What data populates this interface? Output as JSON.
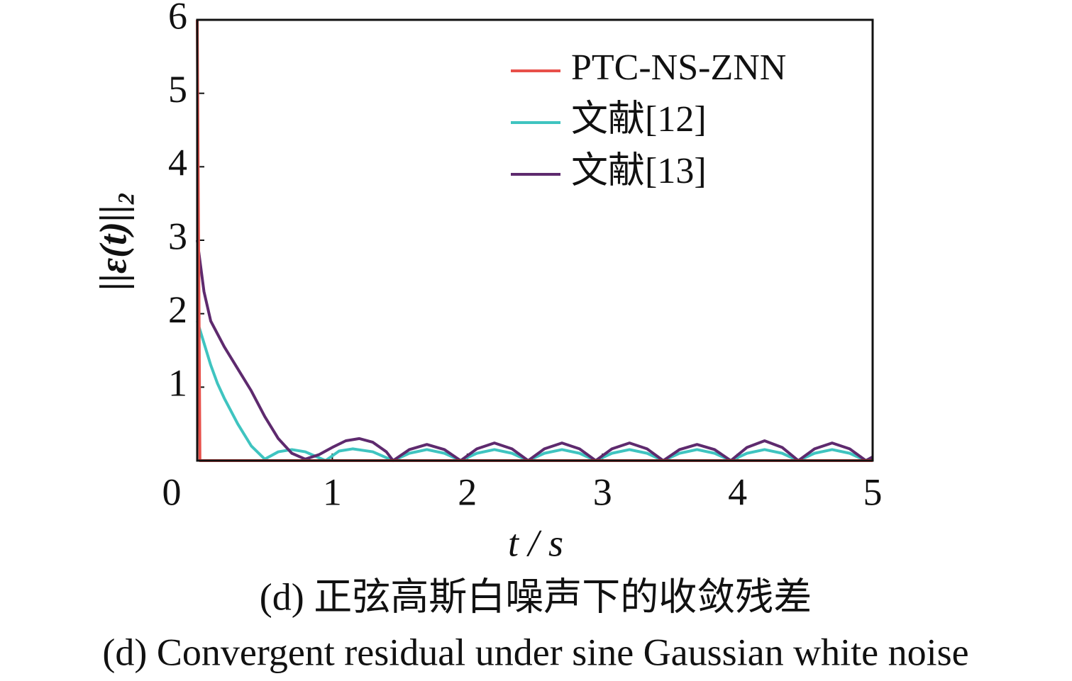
{
  "chart_data": {
    "type": "line",
    "xlabel": "t / s",
    "ylabel": "||ε(t)||₂",
    "caption_zh": "(d)  正弦高斯白噪声下的收敛残差",
    "caption_en": "(d)  Convergent residual under sine Gaussian white noise",
    "xlim": [
      0,
      5
    ],
    "xticks": [
      0,
      1,
      2,
      3,
      4,
      5
    ],
    "ylim": [
      0,
      6
    ],
    "yticks": [
      1,
      2,
      3,
      4,
      5,
      6
    ],
    "grid": false,
    "legend": "upper right",
    "series": [
      {
        "name": "PTC-NS-ZNN",
        "color": "#e8504a",
        "x": [
          0,
          0.01,
          0.02,
          5
        ],
        "values": [
          6,
          3,
          0,
          0
        ]
      },
      {
        "name": "文献[12]",
        "color": "#3fc4c0",
        "x": [
          0,
          0.05,
          0.1,
          0.15,
          0.2,
          0.3,
          0.4,
          0.5,
          0.6,
          0.7,
          0.8,
          0.95,
          1.05,
          1.15,
          1.3,
          1.45,
          1.57,
          1.7,
          1.83,
          1.95,
          2.07,
          2.2,
          2.33,
          2.45,
          2.57,
          2.7,
          2.83,
          2.95,
          3.07,
          3.2,
          3.33,
          3.45,
          3.57,
          3.7,
          3.83,
          3.95,
          4.07,
          4.2,
          4.33,
          4.45,
          4.57,
          4.7,
          4.83,
          4.95,
          5.0
        ],
        "values": [
          1.9,
          1.6,
          1.3,
          1.05,
          0.85,
          0.5,
          0.2,
          0.02,
          0.12,
          0.15,
          0.12,
          0.0,
          0.13,
          0.16,
          0.12,
          0.0,
          0.1,
          0.15,
          0.1,
          0.0,
          0.1,
          0.15,
          0.1,
          0.0,
          0.1,
          0.15,
          0.1,
          0.0,
          0.1,
          0.15,
          0.1,
          0.0,
          0.1,
          0.15,
          0.1,
          0.0,
          0.1,
          0.15,
          0.1,
          0.0,
          0.1,
          0.15,
          0.1,
          0.0,
          0.05
        ]
      },
      {
        "name": "文献[13]",
        "color": "#5e2a6e",
        "x": [
          0,
          0.05,
          0.1,
          0.2,
          0.3,
          0.4,
          0.5,
          0.6,
          0.7,
          0.8,
          0.9,
          1.0,
          1.1,
          1.2,
          1.3,
          1.4,
          1.45,
          1.57,
          1.7,
          1.83,
          1.95,
          2.07,
          2.2,
          2.33,
          2.45,
          2.57,
          2.7,
          2.83,
          2.95,
          3.07,
          3.2,
          3.33,
          3.45,
          3.57,
          3.7,
          3.83,
          3.95,
          4.07,
          4.2,
          4.33,
          4.45,
          4.57,
          4.7,
          4.83,
          4.95,
          5.0
        ],
        "values": [
          3.0,
          2.3,
          1.9,
          1.55,
          1.25,
          0.95,
          0.6,
          0.3,
          0.1,
          0.02,
          0.08,
          0.18,
          0.27,
          0.3,
          0.25,
          0.12,
          0.0,
          0.15,
          0.22,
          0.15,
          0.0,
          0.16,
          0.24,
          0.16,
          0.0,
          0.16,
          0.24,
          0.16,
          0.0,
          0.16,
          0.24,
          0.16,
          0.0,
          0.15,
          0.22,
          0.15,
          0.0,
          0.18,
          0.27,
          0.18,
          0.0,
          0.16,
          0.24,
          0.16,
          0.0,
          0.05
        ]
      }
    ]
  }
}
